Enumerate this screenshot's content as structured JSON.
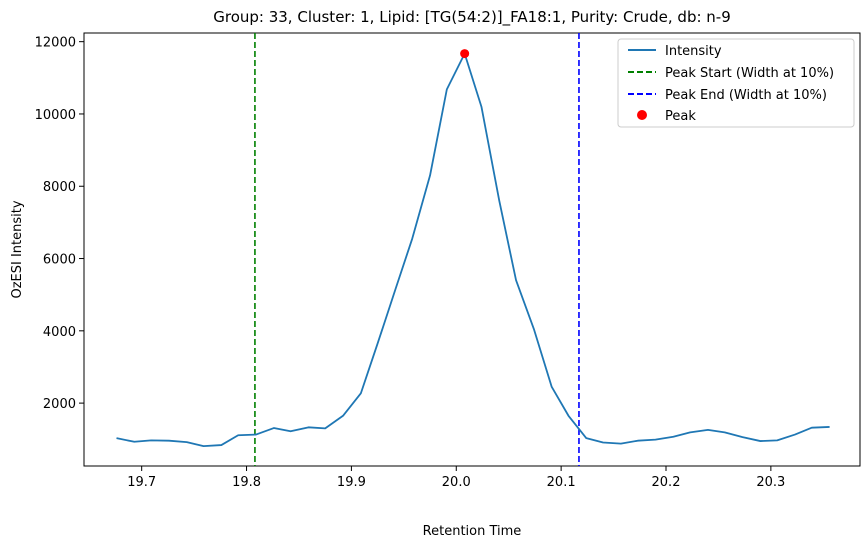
{
  "chart_data": {
    "type": "line",
    "title": "Group: 33, Cluster: 1, Lipid: [TG(54:2)]_FA18:1, Purity: Crude, db: n-9",
    "xlabel": "Retention Time",
    "ylabel": "OzESI Intensity",
    "xlim": [
      19.645,
      20.385
    ],
    "ylim": [
      260,
      12240
    ],
    "xticks": [
      19.7,
      19.8,
      19.9,
      20.0,
      20.1,
      20.2,
      20.3
    ],
    "xtick_labels": [
      "19.7",
      "19.8",
      "19.9",
      "20.0",
      "20.1",
      "20.2",
      "20.3"
    ],
    "yticks": [
      2000,
      4000,
      6000,
      8000,
      10000,
      12000
    ],
    "ytick_labels": [
      "2000",
      "4000",
      "6000",
      "8000",
      "10000",
      "12000"
    ],
    "grid": false,
    "legend_position": "top-right",
    "series": [
      {
        "name": "Intensity",
        "color": "#1f77b4",
        "x": [
          19.676,
          19.693,
          19.709,
          19.726,
          19.743,
          19.759,
          19.776,
          19.792,
          19.809,
          19.826,
          19.842,
          19.859,
          19.875,
          19.892,
          19.909,
          19.925,
          19.942,
          19.958,
          19.975,
          19.991,
          20.008,
          20.024,
          20.041,
          20.057,
          20.074,
          20.091,
          20.107,
          20.124,
          20.14,
          20.157,
          20.173,
          20.19,
          20.207,
          20.223,
          20.24,
          20.256,
          20.273,
          20.29,
          20.306,
          20.323,
          20.339,
          20.356
        ],
        "y": [
          1030,
          930,
          970,
          960,
          920,
          810,
          840,
          1110,
          1130,
          1310,
          1220,
          1330,
          1300,
          1650,
          2270,
          3650,
          5150,
          6550,
          8300,
          10680,
          11670,
          10200,
          7600,
          5400,
          4050,
          2450,
          1650,
          1030,
          910,
          880,
          960,
          990,
          1070,
          1190,
          1260,
          1190,
          1060,
          950,
          970,
          1130,
          1320,
          1340
        ]
      }
    ],
    "vlines": [
      {
        "name": "Peak Start (Width at 10%)",
        "x": 19.808,
        "color": "#008000",
        "style": "dashed"
      },
      {
        "name": "Peak End (Width at 10%)",
        "x": 20.117,
        "color": "#0000ff",
        "style": "dashed"
      }
    ],
    "peak": {
      "name": "Peak",
      "x": 20.008,
      "y": 11670,
      "color": "#ff0000"
    }
  }
}
